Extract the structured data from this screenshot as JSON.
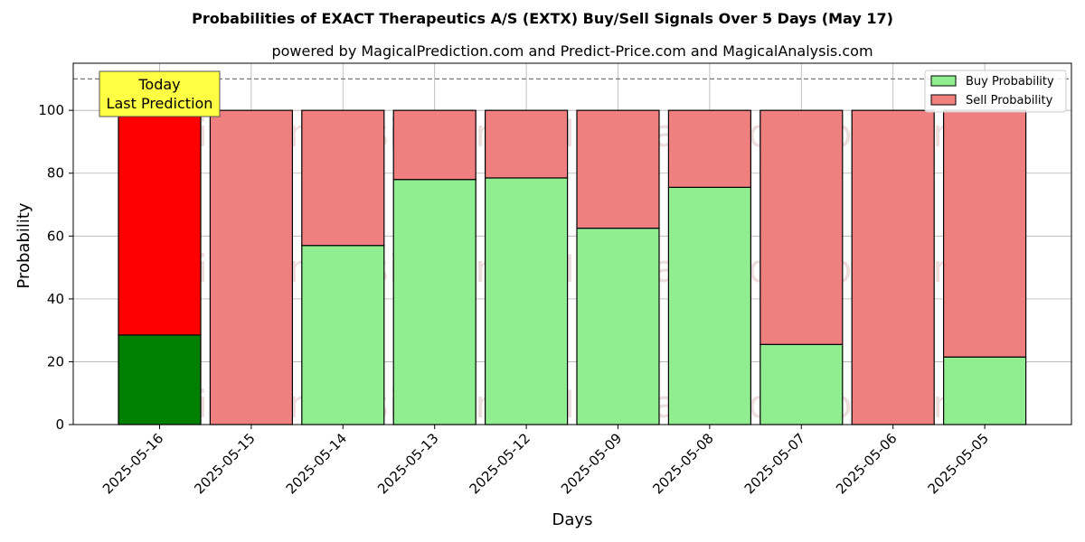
{
  "chart_data": {
    "type": "bar",
    "stacked": true,
    "title": "Probabilities of EXACT Therapeutics A/S (EXTX) Buy/Sell Signals Over 5 Days (May 17)",
    "subtitle": "powered by MagicalPrediction.com and Predict-Price.com and MagicalAnalysis.com",
    "xlabel": "Days",
    "ylabel": "Probability",
    "ylim": [
      0,
      115
    ],
    "yticks": [
      0,
      20,
      40,
      60,
      80,
      100
    ],
    "grid": true,
    "legend_position": "top-right",
    "categories": [
      "2025-05-16",
      "2025-05-15",
      "2025-05-14",
      "2025-05-13",
      "2025-05-12",
      "2025-05-09",
      "2025-05-08",
      "2025-05-07",
      "2025-05-06",
      "2025-05-05"
    ],
    "series": [
      {
        "name": "Buy Probability",
        "values": [
          28.5,
          0,
          57,
          78,
          78.5,
          62.5,
          75.5,
          25.5,
          0,
          21.5
        ]
      },
      {
        "name": "Sell Probability",
        "values": [
          71.5,
          100,
          43,
          22,
          21.5,
          37.5,
          24.5,
          74.5,
          100,
          78.5
        ]
      }
    ],
    "reference_line": {
      "y": 110,
      "style": "dashed"
    },
    "annotation": {
      "lines": [
        "Today",
        "Last Prediction"
      ],
      "category": "2025-05-16"
    },
    "watermarks": [
      "MagicalAnalysis.com",
      "MagicalPrediction.com"
    ],
    "colors": {
      "buy": "#90ee90",
      "sell": "#f08080",
      "buy_today": "#008000",
      "sell_today": "#ff0000",
      "annotation_bg": "#ffff44"
    }
  }
}
